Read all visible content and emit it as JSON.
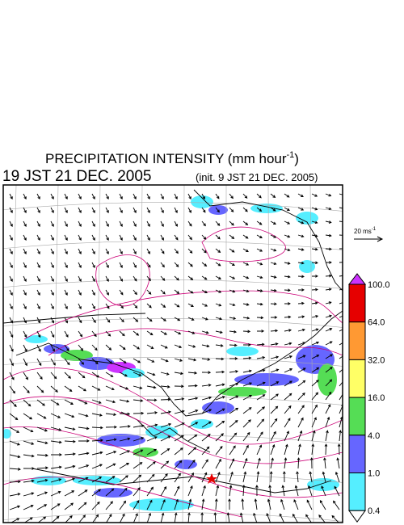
{
  "header": {
    "title": "PRECIPITATION INTENSITY (mm hour",
    "title_exponent": "-1",
    "title_close": ")",
    "valid_time": "19 JST 21 DEC. 2005",
    "init_time": "(init. 9 JST 21 DEC. 2005)"
  },
  "wind_scale": {
    "label": "20 ms",
    "exponent": "-1"
  },
  "colorbar": {
    "top_color": "#cc33ff",
    "bottom_color": "#ffffff",
    "levels": [
      {
        "label": "100.0",
        "color": "#e60000"
      },
      {
        "label": "64.0",
        "color": "#ff9933"
      },
      {
        "label": "32.0",
        "color": "#ffff66"
      },
      {
        "label": "16.0",
        "color": "#55dd55"
      },
      {
        "label": "4.0",
        "color": "#6666ff"
      },
      {
        "label": "1.0",
        "color": "#55eeff"
      },
      {
        "label": "0.4",
        "color": null
      }
    ]
  }
}
